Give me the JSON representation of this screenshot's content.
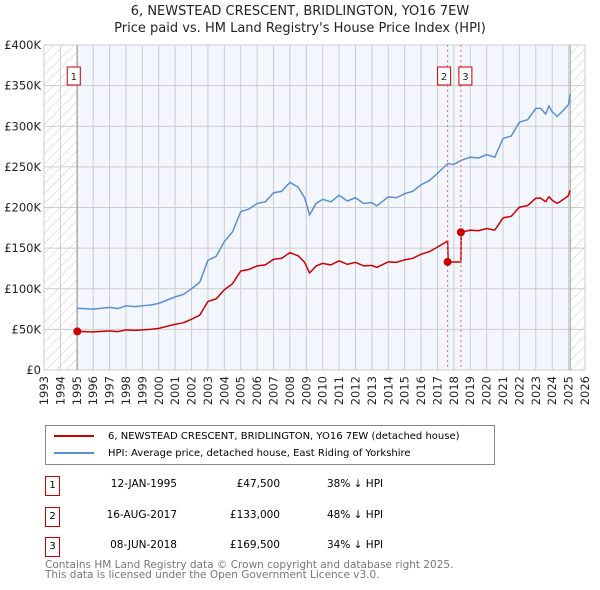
{
  "chart_data": {
    "type": "line",
    "title": "6, NEWSTEAD CRESCENT, BRIDLINGTON, YO16 7EW",
    "subtitle": "Price paid vs. HM Land Registry's House Price Index (HPI)",
    "xlim": [
      1993,
      2026
    ],
    "ylim": [
      0,
      400000
    ],
    "x_ticks": [
      "1993",
      "1994",
      "1995",
      "1996",
      "1997",
      "1998",
      "1999",
      "2000",
      "2001",
      "2002",
      "2003",
      "2004",
      "2005",
      "2006",
      "2007",
      "2008",
      "2009",
      "2010",
      "2011",
      "2012",
      "2013",
      "2014",
      "2015",
      "2016",
      "2017",
      "2018",
      "2019",
      "2020",
      "2021",
      "2022",
      "2023",
      "2024",
      "2025",
      "2026"
    ],
    "y_ticks": [
      {
        "v": 0,
        "label": "£0"
      },
      {
        "v": 50000,
        "label": "£50K"
      },
      {
        "v": 100000,
        "label": "£100K"
      },
      {
        "v": 150000,
        "label": "£150K"
      },
      {
        "v": 200000,
        "label": "£200K"
      },
      {
        "v": 250000,
        "label": "£250K"
      },
      {
        "v": 300000,
        "label": "£300K"
      },
      {
        "v": 350000,
        "label": "£350K"
      },
      {
        "v": 400000,
        "label": "£400K"
      }
    ],
    "grid": true,
    "data_range": [
      1995.03,
      2025.1
    ],
    "series": [
      {
        "name": "6, NEWSTEAD CRESCENT, BRIDLINGTON, YO16 7EW (detached house)",
        "color": "#cc0000"
      },
      {
        "name": "HPI: Average price, detached house, East Riding of Yorkshire",
        "color": "#5b8fd4",
        "x": [
          1995.03,
          1996,
          1997,
          1997.5,
          1998,
          1998.5,
          1999,
          1999.5,
          2000,
          2001,
          2001.5,
          2002,
          2002.5,
          2003,
          2003.5,
          2004,
          2004.5,
          2005,
          2005.5,
          2006,
          2006.5,
          2007,
          2007.5,
          2008,
          2008.5,
          2008.9,
          2009.2,
          2009.6,
          2010,
          2010.5,
          2011,
          2011.5,
          2012,
          2012.5,
          2013,
          2013.3,
          2014,
          2014.5,
          2015,
          2015.5,
          2016,
          2016.5,
          2017,
          2017.62,
          2018,
          2018.43,
          2019,
          2019.5,
          2020,
          2020.5,
          2021,
          2021.5,
          2022,
          2022.5,
          2023,
          2023.3,
          2023.6,
          2023.8,
          2024,
          2024.3,
          2024.7,
          2025,
          2025.1
        ],
        "y": [
          76000,
          75000,
          77000,
          75500,
          79000,
          78000,
          79000,
          80000,
          82000,
          90000,
          93000,
          100000,
          108000,
          135000,
          140000,
          158000,
          170000,
          195000,
          198000,
          205000,
          207000,
          218000,
          220000,
          231000,
          225000,
          212000,
          191000,
          205000,
          210000,
          207000,
          215000,
          208000,
          212000,
          205000,
          206000,
          202000,
          213000,
          212000,
          217000,
          220000,
          228000,
          233000,
          242000,
          254000,
          253000,
          258000,
          262000,
          261000,
          265000,
          262000,
          285000,
          288000,
          305000,
          308000,
          322000,
          322000,
          315000,
          325000,
          318000,
          312000,
          320000,
          327000,
          340000
        ]
      }
    ],
    "sales": [
      {
        "id": "1",
        "date": "12-JAN-1995",
        "x": 1995.03,
        "price": 47500,
        "price_label": "£47,500",
        "hpi": "38% ↓ HPI"
      },
      {
        "id": "2",
        "date": "16-AUG-2017",
        "x": 2017.62,
        "price": 133000,
        "price_label": "£133,000",
        "hpi": "48% ↓ HPI"
      },
      {
        "id": "3",
        "date": "08-JUN-2018",
        "x": 2018.43,
        "price": 169500,
        "price_label": "£169,500",
        "hpi": "34% ↓ HPI"
      }
    ]
  },
  "footer": [
    "Contains HM Land Registry data © Crown copyright and database right 2025.",
    "This data is licensed under the Open Government Licence v3.0."
  ]
}
